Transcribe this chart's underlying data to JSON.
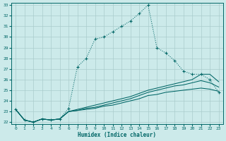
{
  "xlabel": "Humidex (Indice chaleur)",
  "bg_color": "#cceaea",
  "grid_color": "#aacccc",
  "line_color": "#006666",
  "xlim": [
    -0.5,
    23.5
  ],
  "ylim": [
    21.8,
    33.2
  ],
  "xticks": [
    0,
    1,
    2,
    3,
    4,
    5,
    6,
    7,
    8,
    9,
    10,
    11,
    12,
    13,
    14,
    15,
    16,
    17,
    18,
    19,
    20,
    21,
    22,
    23
  ],
  "yticks": [
    22,
    23,
    24,
    25,
    26,
    27,
    28,
    29,
    30,
    31,
    32,
    33
  ],
  "line1_x": [
    0,
    1,
    2,
    3,
    4,
    5,
    6,
    7,
    8,
    9,
    10,
    11,
    12,
    13,
    14,
    15,
    16,
    17,
    18,
    19,
    20,
    21,
    22,
    23
  ],
  "line1_y": [
    23.2,
    22.2,
    22.0,
    22.3,
    22.2,
    22.3,
    23.3,
    27.2,
    28.0,
    29.8,
    30.0,
    30.5,
    31.0,
    31.5,
    32.2,
    33.0,
    29.0,
    28.5,
    27.8,
    26.8,
    26.5,
    26.5,
    26.0,
    24.8
  ],
  "line2_x": [
    0,
    1,
    2,
    3,
    4,
    5,
    6,
    7,
    8,
    9,
    10,
    11,
    12,
    13,
    14,
    15,
    16,
    17,
    18,
    19,
    20,
    21,
    22,
    23
  ],
  "line2_y": [
    23.2,
    22.2,
    22.0,
    22.3,
    22.2,
    22.3,
    23.0,
    23.2,
    23.4,
    23.6,
    23.8,
    24.0,
    24.2,
    24.4,
    24.7,
    25.0,
    25.2,
    25.4,
    25.6,
    25.8,
    26.0,
    26.5,
    26.5,
    25.8
  ],
  "line3_x": [
    0,
    1,
    2,
    3,
    4,
    5,
    6,
    7,
    8,
    9,
    10,
    11,
    12,
    13,
    14,
    15,
    16,
    17,
    18,
    19,
    20,
    21,
    22,
    23
  ],
  "line3_y": [
    23.2,
    22.2,
    22.0,
    22.3,
    22.2,
    22.3,
    23.0,
    23.1,
    23.3,
    23.4,
    23.6,
    23.8,
    24.0,
    24.2,
    24.5,
    24.8,
    25.0,
    25.2,
    25.4,
    25.5,
    25.7,
    25.9,
    25.7,
    25.3
  ],
  "line4_x": [
    0,
    1,
    2,
    3,
    4,
    5,
    6,
    7,
    8,
    9,
    10,
    11,
    12,
    13,
    14,
    15,
    16,
    17,
    18,
    19,
    20,
    21,
    22,
    23
  ],
  "line4_y": [
    23.2,
    22.2,
    22.0,
    22.3,
    22.2,
    22.3,
    23.0,
    23.1,
    23.2,
    23.3,
    23.5,
    23.6,
    23.8,
    24.0,
    24.2,
    24.5,
    24.6,
    24.8,
    24.9,
    25.0,
    25.1,
    25.2,
    25.1,
    24.9
  ]
}
